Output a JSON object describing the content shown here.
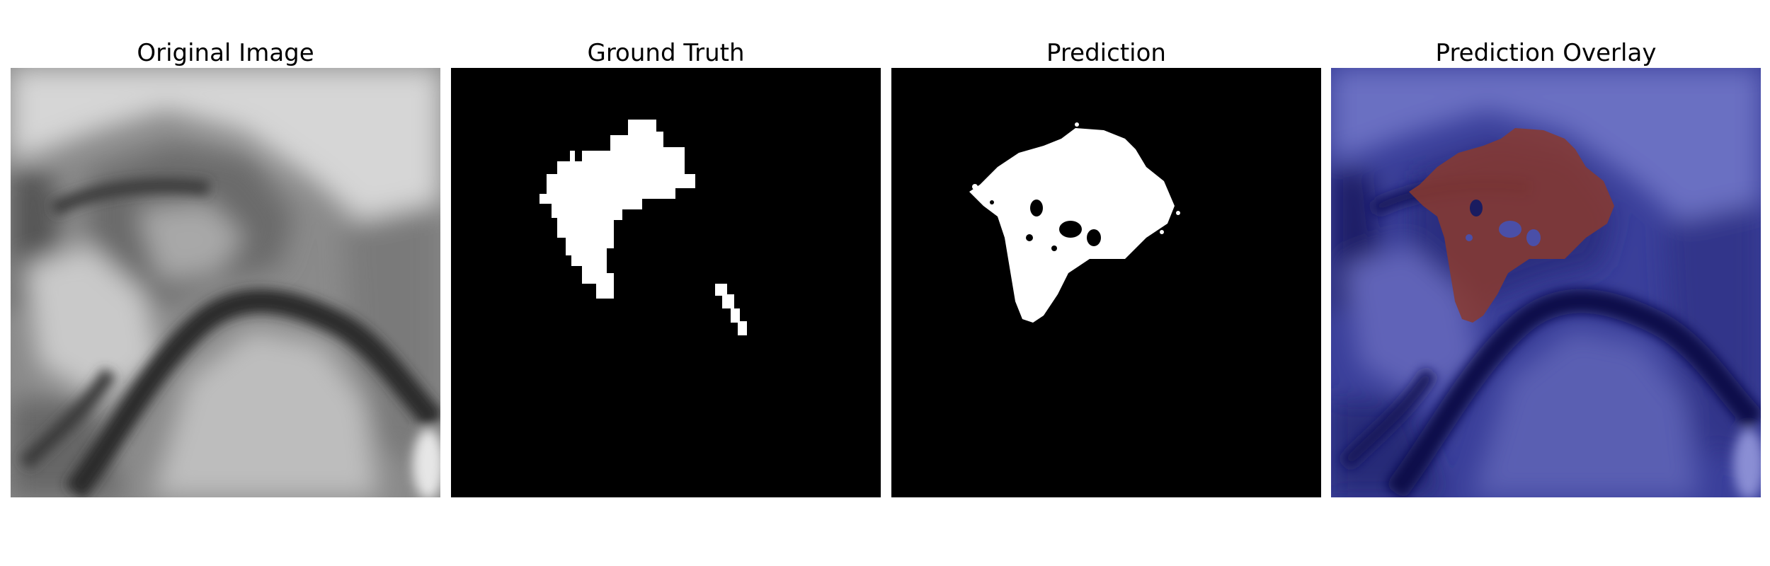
{
  "figure": {
    "panels": [
      {
        "title": "Original Image"
      },
      {
        "title": "Ground Truth"
      },
      {
        "title": "Prediction"
      },
      {
        "title": "Prediction Overlay"
      }
    ]
  },
  "colors": {
    "background": "#ffffff",
    "mask_background": "#000000",
    "mask_foreground": "#ffffff",
    "overlay_base": "#3a3f9a",
    "overlay_dark": "#0c0c4a",
    "overlay_lesion": "#8a3a2e"
  }
}
